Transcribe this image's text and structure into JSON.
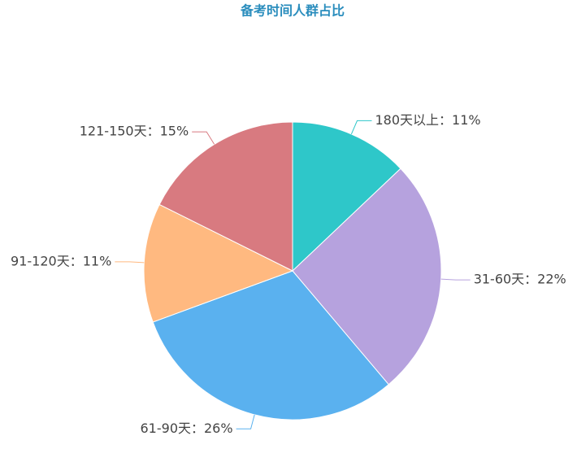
{
  "chart_data": {
    "type": "pie",
    "title": "备考时间人群占比",
    "values": [
      11,
      22,
      26,
      11,
      15
    ],
    "value_labels": [
      "180天以上：11%",
      "31-60天：22%",
      "61-90天：26%",
      "91-120天：11%",
      "121-150天：15%"
    ],
    "colors": [
      "#2ec7c9",
      "#b6a2de",
      "#5ab1ef",
      "#ffb980",
      "#d87a80"
    ]
  }
}
